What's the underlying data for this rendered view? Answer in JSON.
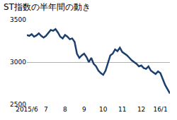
{
  "chart_data": {
    "type": "line",
    "title": "ST指数の半年間の動き",
    "categories": [
      "2015/6",
      null,
      null,
      null,
      null,
      null,
      null,
      null,
      "7",
      null,
      null,
      null,
      null,
      null,
      null,
      null,
      "8",
      null,
      null,
      null,
      null,
      null,
      null,
      null,
      "9",
      null,
      null,
      null,
      null,
      null,
      null,
      null,
      "10",
      null,
      null,
      null,
      null,
      null,
      null,
      null,
      "11",
      null,
      null,
      null,
      null,
      null,
      null,
      null,
      "12",
      null,
      null,
      null,
      null,
      null,
      null,
      null,
      "16/1",
      null,
      null,
      null,
      null
    ],
    "values": [
      3320,
      3310,
      3330,
      3300,
      3315,
      3340,
      3310,
      3290,
      3310,
      3350,
      3380,
      3370,
      3390,
      3350,
      3300,
      3280,
      3320,
      3300,
      3270,
      3280,
      3240,
      3100,
      3050,
      3080,
      3100,
      3060,
      3000,
      3050,
      2980,
      2950,
      2900,
      2870,
      2850,
      2900,
      3000,
      3080,
      3100,
      3150,
      3130,
      3170,
      3120,
      3100,
      3080,
      3050,
      3020,
      3000,
      2980,
      2950,
      2960,
      2930,
      2920,
      2950,
      2900,
      2880,
      2860,
      2890,
      2870,
      2800,
      2730,
      2680,
      2630
    ],
    "color": "#1d3f6e",
    "ylim": [
      2500,
      3500
    ],
    "yticks": [
      2500,
      3000,
      3500
    ],
    "grid": true
  }
}
